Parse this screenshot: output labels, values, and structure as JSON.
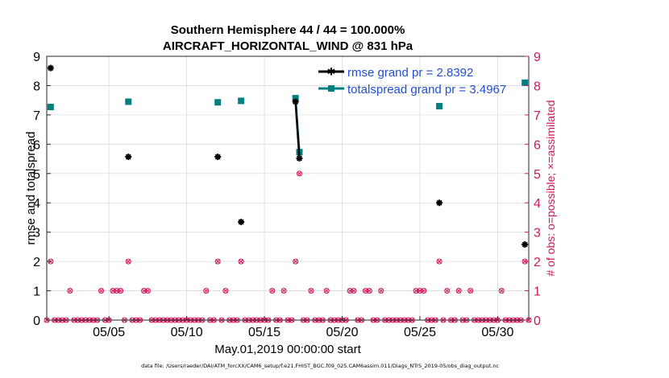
{
  "chart_data": {
    "type": "scatter",
    "title": [
      "Southern Hemisphere 44 / 44 = 100.000%",
      "AIRCRAFT_HORIZONTAL_WIND @ 831 hPa"
    ],
    "xlabel": "May.01,2019 00:00:00 start",
    "ylabel": "rmse and totalspread",
    "ylabel_right": "# of obs: o=possible; ×=assimilated",
    "footer": "data file: /Users/raeder/DAI/ATM_forcXX/CAM6_setup/f.e21.FHIST_BGC.f09_025.CAM6assim.011/Diags_NTrS_2019-05/obs_diag_output.nc",
    "xlim": [
      1,
      32
    ],
    "ylim": [
      0,
      9
    ],
    "ylim_right": [
      0,
      9
    ],
    "x_ticks": [
      5,
      10,
      15,
      20,
      25,
      30
    ],
    "x_tick_labels": [
      "05/05",
      "05/10",
      "05/15",
      "05/20",
      "05/25",
      "05/30"
    ],
    "y_ticks": [
      0,
      1,
      2,
      3,
      4,
      5,
      6,
      7,
      8,
      9
    ],
    "grid": true,
    "legend_position": "top-right",
    "colors": {
      "rmse": "#000000",
      "totalspread": "#008080",
      "obs": "#d4145a"
    },
    "series": [
      {
        "name": "rmse grand pr = 2.8392",
        "points": [
          [
            1.25,
            8.6
          ],
          [
            6.25,
            5.57
          ],
          [
            12.0,
            5.57
          ],
          [
            13.5,
            3.35
          ],
          [
            17.0,
            7.45
          ],
          [
            17.25,
            5.52
          ],
          [
            26.25,
            4.0
          ],
          [
            31.75,
            2.58
          ]
        ],
        "segments": [
          [
            [
              17.0,
              7.45
            ],
            [
              17.25,
              5.52
            ]
          ]
        ]
      },
      {
        "name": "totalspread grand pr = 3.4967",
        "points": [
          [
            1.25,
            7.27
          ],
          [
            6.25,
            7.45
          ],
          [
            12.0,
            7.43
          ],
          [
            13.5,
            7.48
          ],
          [
            17.0,
            7.57
          ],
          [
            17.25,
            5.73
          ],
          [
            26.25,
            7.3
          ],
          [
            31.75,
            8.1
          ]
        ],
        "segments": [
          [
            [
              17.0,
              7.57
            ],
            [
              17.25,
              5.73
            ]
          ]
        ]
      }
    ],
    "obs_counts": [
      [
        1.0,
        0
      ],
      [
        1.25,
        2
      ],
      [
        1.5,
        0
      ],
      [
        1.75,
        0
      ],
      [
        2.0,
        0
      ],
      [
        2.25,
        0
      ],
      [
        2.5,
        1
      ],
      [
        2.75,
        0
      ],
      [
        3.0,
        0
      ],
      [
        3.25,
        0
      ],
      [
        3.5,
        0
      ],
      [
        3.75,
        0
      ],
      [
        4.0,
        0
      ],
      [
        4.25,
        0
      ],
      [
        4.5,
        1
      ],
      [
        4.75,
        0
      ],
      [
        5.0,
        0
      ],
      [
        5.25,
        1
      ],
      [
        5.5,
        1
      ],
      [
        5.75,
        1
      ],
      [
        6.0,
        0
      ],
      [
        6.25,
        2
      ],
      [
        6.5,
        0
      ],
      [
        6.75,
        0
      ],
      [
        7.0,
        0
      ],
      [
        7.25,
        1
      ],
      [
        7.5,
        1
      ],
      [
        7.75,
        0
      ],
      [
        8.0,
        0
      ],
      [
        8.25,
        0
      ],
      [
        8.5,
        0
      ],
      [
        8.75,
        0
      ],
      [
        9.0,
        0
      ],
      [
        9.25,
        0
      ],
      [
        9.5,
        0
      ],
      [
        9.75,
        0
      ],
      [
        10.0,
        0
      ],
      [
        10.25,
        0
      ],
      [
        10.5,
        0
      ],
      [
        10.75,
        0
      ],
      [
        11.0,
        0
      ],
      [
        11.25,
        1
      ],
      [
        11.5,
        0
      ],
      [
        11.75,
        0
      ],
      [
        12.0,
        2
      ],
      [
        12.25,
        0
      ],
      [
        12.5,
        1
      ],
      [
        12.75,
        0
      ],
      [
        13.0,
        0
      ],
      [
        13.25,
        0
      ],
      [
        13.5,
        2
      ],
      [
        13.75,
        0
      ],
      [
        14.0,
        0
      ],
      [
        14.25,
        0
      ],
      [
        14.5,
        0
      ],
      [
        14.75,
        0
      ],
      [
        15.0,
        0
      ],
      [
        15.25,
        0
      ],
      [
        15.5,
        1
      ],
      [
        15.75,
        0
      ],
      [
        16.0,
        0
      ],
      [
        16.25,
        1
      ],
      [
        16.5,
        0
      ],
      [
        16.75,
        0
      ],
      [
        17.0,
        2
      ],
      [
        17.25,
        5
      ],
      [
        17.5,
        0
      ],
      [
        17.75,
        0
      ],
      [
        18.0,
        1
      ],
      [
        18.25,
        0
      ],
      [
        18.5,
        0
      ],
      [
        18.75,
        0
      ],
      [
        19.0,
        1
      ],
      [
        19.25,
        0
      ],
      [
        19.5,
        0
      ],
      [
        19.75,
        0
      ],
      [
        20.0,
        0
      ],
      [
        20.25,
        0
      ],
      [
        20.5,
        1
      ],
      [
        20.75,
        1
      ],
      [
        21.0,
        0
      ],
      [
        21.25,
        0
      ],
      [
        21.5,
        1
      ],
      [
        21.75,
        1
      ],
      [
        22.0,
        0
      ],
      [
        22.25,
        0
      ],
      [
        22.5,
        1
      ],
      [
        22.75,
        0
      ],
      [
        23.0,
        0
      ],
      [
        23.25,
        0
      ],
      [
        23.5,
        0
      ],
      [
        23.75,
        0
      ],
      [
        24.0,
        0
      ],
      [
        24.25,
        0
      ],
      [
        24.5,
        0
      ],
      [
        24.75,
        1
      ],
      [
        25.0,
        1
      ],
      [
        25.25,
        1
      ],
      [
        25.5,
        0
      ],
      [
        25.75,
        0
      ],
      [
        26.0,
        0
      ],
      [
        26.25,
        2
      ],
      [
        26.5,
        0
      ],
      [
        26.75,
        1
      ],
      [
        27.0,
        0
      ],
      [
        27.25,
        0
      ],
      [
        27.5,
        1
      ],
      [
        27.75,
        0
      ],
      [
        28.0,
        0
      ],
      [
        28.25,
        1
      ],
      [
        28.5,
        0
      ],
      [
        28.75,
        0
      ],
      [
        29.0,
        0
      ],
      [
        29.25,
        0
      ],
      [
        29.5,
        0
      ],
      [
        29.75,
        0
      ],
      [
        30.0,
        0
      ],
      [
        30.25,
        1
      ],
      [
        30.5,
        0
      ],
      [
        30.75,
        0
      ],
      [
        31.0,
        0
      ],
      [
        31.25,
        0
      ],
      [
        31.5,
        0
      ],
      [
        31.75,
        2
      ],
      [
        32.0,
        0
      ]
    ]
  }
}
